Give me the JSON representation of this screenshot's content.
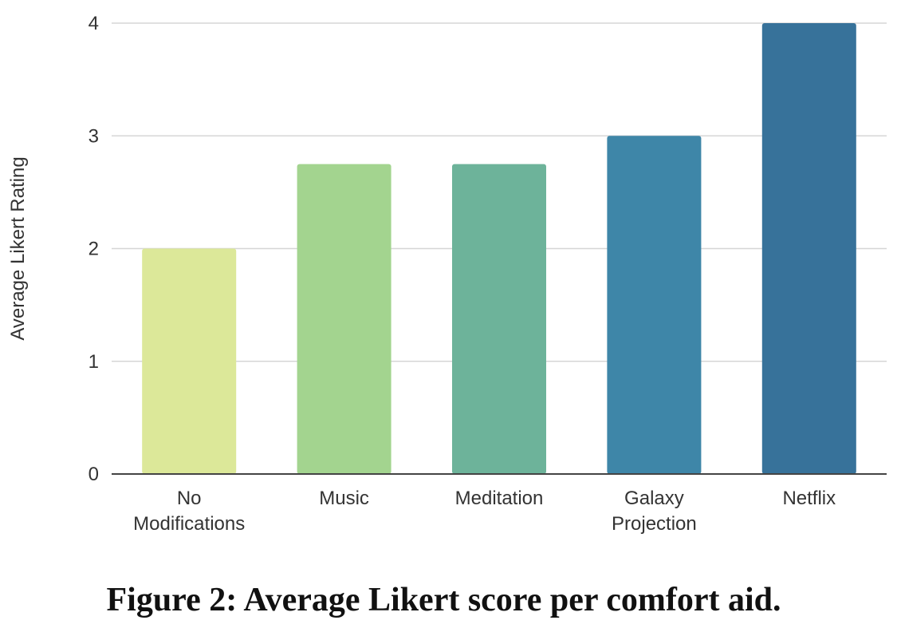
{
  "caption": "Figure 2: Average Likert score per comfort aid.",
  "chart_data": {
    "type": "bar",
    "title": "",
    "xlabel": "",
    "ylabel": "Average Likert Rating",
    "ylim": [
      0,
      4
    ],
    "yticks": [
      0,
      1,
      2,
      3,
      4
    ],
    "grid": true,
    "categories": [
      [
        "No",
        "Modifications"
      ],
      [
        "Music"
      ],
      [
        "Meditation"
      ],
      [
        "Galaxy",
        "Projection"
      ],
      [
        "Netflix"
      ]
    ],
    "values": [
      2.0,
      2.75,
      2.75,
      3.0,
      4.0
    ],
    "colors": [
      "#dce899",
      "#a3d48f",
      "#6db39a",
      "#3e86a8",
      "#37729a"
    ]
  }
}
